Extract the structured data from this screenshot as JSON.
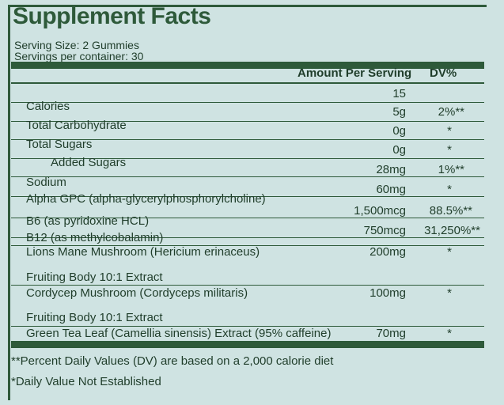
{
  "title": "Supplement Facts",
  "serving_size": "Serving Size: 2 Gummies",
  "servings_per_container": "Servings per container: 30",
  "header": {
    "amount": "Amount Per Serving",
    "dv": "DV%"
  },
  "rows": [
    {
      "name": "",
      "amount": "15",
      "dv": ""
    },
    {
      "name": "Calories",
      "amount": "5g",
      "dv": "2%**"
    },
    {
      "name": "Total Carbohydrate",
      "amount": "0g",
      "dv": "*"
    },
    {
      "name": "Total Sugars",
      "amount": "0g",
      "dv": "*"
    },
    {
      "name": "Added Sugars",
      "amount": "28mg",
      "dv": "1%**"
    },
    {
      "name": "Sodium",
      "amount": "60mg",
      "dv": "*"
    },
    {
      "name": "Alpha GPC (alpha-glycerylphosphorylcholine)",
      "amount": "1,500mcg",
      "dv": "88.5%**"
    },
    {
      "name": "B6 (as pyridoxine HCL)",
      "amount": "750mcg",
      "dv": "31,250%**"
    },
    {
      "name": "B12 (as methylcobalamin)",
      "amount": "",
      "dv": ""
    },
    {
      "name": "Lions Mane Mushroom (Hericium erinaceus)",
      "amount": "200mg",
      "dv": "*"
    },
    {
      "name": "Fruiting Body 10:1 Extract",
      "amount": "",
      "dv": ""
    },
    {
      "name": "Cordycep Mushroom (Cordyceps militaris)",
      "amount": "100mg",
      "dv": "*"
    },
    {
      "name": "Fruiting Body 10:1 Extract",
      "amount": "",
      "dv": ""
    },
    {
      "name": "Green Tea Leaf (Camellia sinensis) Extract (95% caffeine)",
      "amount": "70mg",
      "dv": "*"
    }
  ],
  "footnotes": [
    "**Percent Daily Values (DV) are based on a 2,000 calorie diet",
    "*Daily Value Not Established"
  ]
}
